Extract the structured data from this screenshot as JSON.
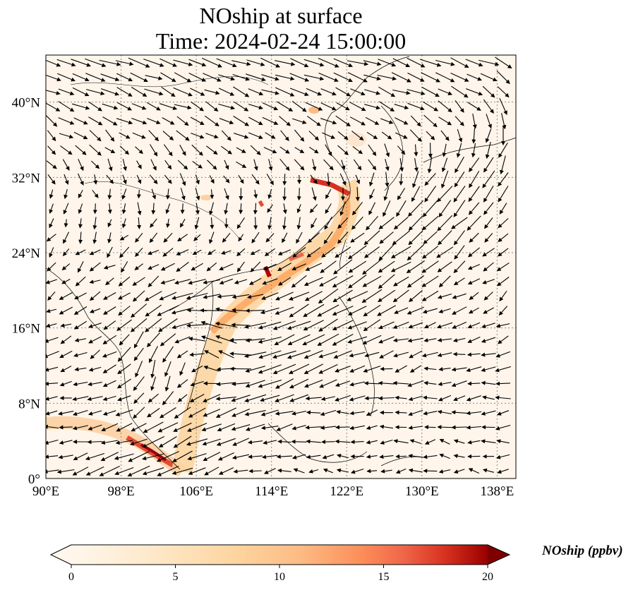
{
  "title": {
    "line1": "NOship at surface",
    "line2": "Time: 2024-02-24 15:00:00"
  },
  "map": {
    "projection": "PlateCarree",
    "lon_range": [
      90,
      140
    ],
    "lat_range": [
      0,
      45
    ],
    "lon_ticks": [
      "90°E",
      "98°E",
      "106°E",
      "114°E",
      "122°E",
      "130°E",
      "138°E"
    ],
    "lat_ticks": [
      "0°",
      "8°N",
      "16°N",
      "24°N",
      "32°N",
      "40°N"
    ],
    "gridlines": "dotted",
    "coastlines": true,
    "wind_vectors": true
  },
  "colorbar": {
    "label": "NOship (ppbv)",
    "ticks": [
      "0",
      "5",
      "10",
      "15",
      "20"
    ],
    "range": [
      0,
      20
    ],
    "colormap": "OrRd",
    "extend": "both"
  },
  "colors": {
    "background": "#fff5eb",
    "low": "#fee6ce",
    "mid": "#fdae6b",
    "high": "#e34a33",
    "max": "#7f0000"
  }
}
